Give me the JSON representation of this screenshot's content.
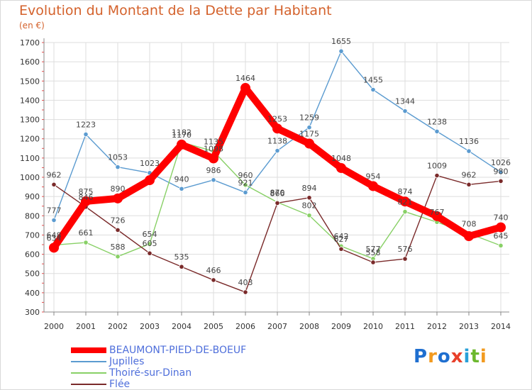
{
  "title": "Evolution du Montant de la Dette par Habitant",
  "unit_label": "(en €)",
  "logo": {
    "text": "Proxiti",
    "colors": [
      "#1f6fd0",
      "#f29a1f",
      "#1f6fd0",
      "#e8402a",
      "#28a0d8",
      "#6cb82e",
      "#f29a1f"
    ]
  },
  "chart_data": {
    "type": "line",
    "x": [
      2000,
      2001,
      2002,
      2003,
      2004,
      2005,
      2006,
      2007,
      2008,
      2009,
      2010,
      2011,
      2012,
      2013,
      2014
    ],
    "ylim": [
      300,
      1700
    ],
    "yticks": [
      300,
      400,
      500,
      600,
      700,
      800,
      900,
      1000,
      1100,
      1200,
      1300,
      1400,
      1500,
      1600,
      1700
    ],
    "grid": true,
    "legend_position": "bottom-left",
    "series": [
      {
        "name": "BEAUMONT-PIED-DE-BOEUF",
        "color": "#ff0000",
        "values": [
          634,
          875,
          890,
          985,
          1170,
          1098,
          1464,
          1253,
          1175,
          1048,
          954,
          874,
          798,
          694,
          740
        ],
        "labels": [
          "634",
          "875",
          "890",
          "",
          "1170",
          "1098",
          "1464",
          "1253",
          "1175",
          "1048",
          "954",
          "874",
          "",
          "",
          "740"
        ]
      },
      {
        "name": "Jupilles",
        "color": "#5b9bd0",
        "values": [
          777,
          1223,
          1053,
          1023,
          940,
          986,
          921,
          1138,
          1259,
          1655,
          1455,
          1344,
          1238,
          1136,
          1026
        ],
        "labels": [
          "777",
          "1223",
          "1053",
          "1023",
          "940",
          "986",
          "921",
          "1138",
          "1259",
          "1655",
          "1455",
          "1344",
          "1238",
          "1136",
          "1026"
        ]
      },
      {
        "name": "Thoiré-sur-Dinan",
        "color": "#88d066",
        "values": [
          648,
          661,
          588,
          654,
          1182,
          1135,
          960,
          870,
          802,
          642,
          577,
          821,
          767,
          708,
          645
        ],
        "labels": [
          "648",
          "661",
          "588",
          "654",
          "1182",
          "1135",
          "960",
          "870",
          "802",
          "642",
          "577",
          "821",
          "767",
          "708",
          "645"
        ]
      },
      {
        "name": "Flée",
        "color": "#7a2a2a",
        "values": [
          962,
          846,
          726,
          605,
          535,
          466,
          403,
          866,
          894,
          627,
          558,
          576,
          1009,
          962,
          980
        ],
        "labels": [
          "962",
          "846",
          "726",
          "605",
          "535",
          "466",
          "403",
          "866",
          "894",
          "627",
          "558",
          "576",
          "1009",
          "962",
          "980"
        ]
      }
    ]
  }
}
